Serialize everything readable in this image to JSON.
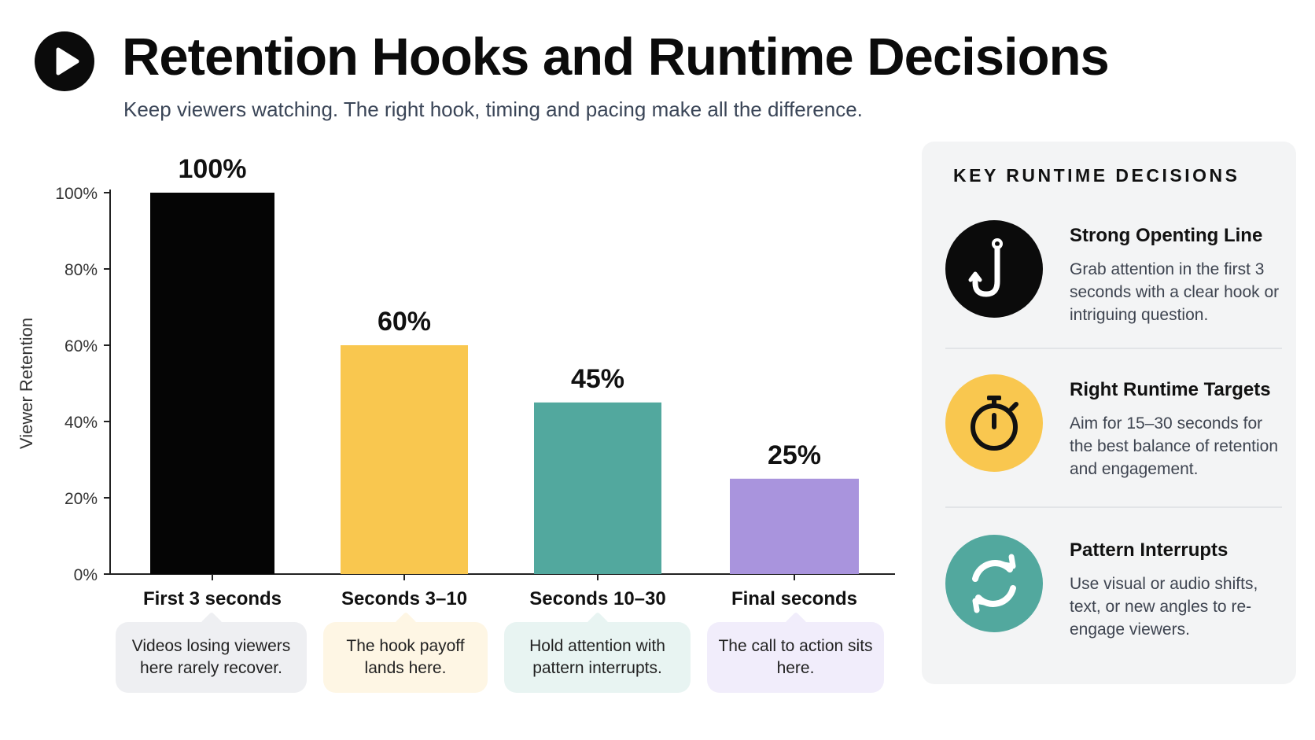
{
  "header": {
    "title": "Retention Hooks and Runtime Decisions",
    "subtitle": "Keep viewers watching. The right hook, timing and pacing make all the difference."
  },
  "chart_data": {
    "type": "bar",
    "categories": [
      "First 3 seconds",
      "Seconds 3–10",
      "Seconds 10–30",
      "Final seconds"
    ],
    "values": [
      100,
      60,
      45,
      25
    ],
    "value_labels": [
      "100%",
      "60%",
      "45%",
      "25%"
    ],
    "colors": [
      "#050505",
      "#f9c74f",
      "#52a89e",
      "#a994dd"
    ],
    "ylabel": "Viewer Retention",
    "xlabel": "",
    "ylim": [
      0,
      100
    ],
    "yticks": [
      0,
      20,
      40,
      60,
      80,
      100
    ],
    "ytick_labels": [
      "0%",
      "20%",
      "40%",
      "60%",
      "80%",
      "100%"
    ],
    "grid": false,
    "notes": [
      {
        "text": "Videos losing viewers here rarely recover.",
        "bg": "#eeeff2"
      },
      {
        "text": "The hook payoff lands here.",
        "bg": "#fef6e4"
      },
      {
        "text": "Hold attention with pattern interrupts.",
        "bg": "#e8f4f2"
      },
      {
        "text": "The call to action sits here.",
        "bg": "#f1edfb"
      }
    ]
  },
  "panel": {
    "title": "KEY RUNTIME DECISIONS",
    "items": [
      {
        "title": "Strong Openting Line",
        "desc": "Grab attention in the first 3 seconds with a clear hook or intriguing question.",
        "icon": "hook-icon",
        "color": "#0b0b0b"
      },
      {
        "title": "Right Runtime Targets",
        "desc": "Aim for 15–30 seconds for the best balance of retention and engagement.",
        "icon": "stopwatch-icon",
        "color": "#f9c74f"
      },
      {
        "title": "Pattern Interrupts",
        "desc": "Use visual or audio shifts, text, or new angles to re-engage viewers.",
        "icon": "refresh-icon",
        "color": "#52a89e"
      }
    ]
  }
}
